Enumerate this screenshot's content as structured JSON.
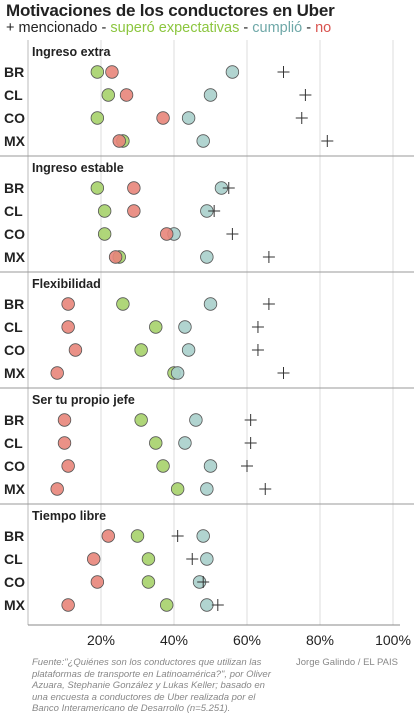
{
  "title": "Motivaciones de los conductores en Uber",
  "legend": {
    "items": [
      {
        "label": "+ mencionado",
        "color": "#222222"
      },
      {
        "label": "superó expectativas",
        "color": "#8cc63f"
      },
      {
        "label": "cumplió",
        "color": "#6fa8a8"
      },
      {
        "label": "no",
        "color": "#d9534f"
      }
    ],
    "separator": " - "
  },
  "source": "Fuente:\"¿Quiénes son los conductores que utilizan las plataformas de transporte en Latinoamérica?\", por Oliver Azuara, Stephanie González y Lukas Keller; basado en una encuesta a conductores de Uber realizada por el Banco Interamericano de Desarrollo (n=5.251).",
  "credit": "Jorge Galindo / EL PAIS",
  "colors": {
    "supero": "#a6d16a",
    "cumplio": "#a9cfcb",
    "no": "#e8857a",
    "stroke": "#555555",
    "grid": "#dddddd"
  },
  "chart_data": {
    "type": "scatter",
    "xlim": [
      0,
      100
    ],
    "x_ticks": [
      "20%",
      "40%",
      "60%",
      "80%",
      "100%"
    ],
    "x_tick_values": [
      20,
      40,
      60,
      80,
      100
    ],
    "series_names": [
      "+ mencionado",
      "superó expectativas",
      "cumplió",
      "no"
    ],
    "panels": [
      {
        "title": "Ingreso extra",
        "rows": [
          {
            "country": "BR",
            "supero": 19,
            "cumplio": 56,
            "no": 23,
            "mencionado": 70
          },
          {
            "country": "CL",
            "supero": 22,
            "cumplio": 50,
            "no": 27,
            "mencionado": 76
          },
          {
            "country": "CO",
            "supero": 19,
            "cumplio": 44,
            "no": 37,
            "mencionado": 75
          },
          {
            "country": "MX",
            "supero": 26,
            "cumplio": 48,
            "no": 25,
            "mencionado": 82
          }
        ]
      },
      {
        "title": "Ingreso estable",
        "rows": [
          {
            "country": "BR",
            "supero": 19,
            "cumplio": 53,
            "no": 29,
            "mencionado": 55
          },
          {
            "country": "CL",
            "supero": 21,
            "cumplio": 49,
            "no": 29,
            "mencionado": 51
          },
          {
            "country": "CO",
            "supero": 21,
            "cumplio": 40,
            "no": 38,
            "mencionado": 56
          },
          {
            "country": "MX",
            "supero": 25,
            "cumplio": 49,
            "no": 24,
            "mencionado": 66
          }
        ]
      },
      {
        "title": "Flexibilidad",
        "rows": [
          {
            "country": "BR",
            "supero": 26,
            "cumplio": 50,
            "no": 11,
            "mencionado": 66
          },
          {
            "country": "CL",
            "supero": 35,
            "cumplio": 43,
            "no": 11,
            "mencionado": 63
          },
          {
            "country": "CO",
            "supero": 31,
            "cumplio": 44,
            "no": 13,
            "mencionado": 63
          },
          {
            "country": "MX",
            "supero": 40,
            "cumplio": 41,
            "no": 8,
            "mencionado": 70
          }
        ]
      },
      {
        "title": "Ser tu propio jefe",
        "rows": [
          {
            "country": "BR",
            "supero": 31,
            "cumplio": 46,
            "no": 10,
            "mencionado": 61
          },
          {
            "country": "CL",
            "supero": 35,
            "cumplio": 43,
            "no": 10,
            "mencionado": 61
          },
          {
            "country": "CO",
            "supero": 37,
            "cumplio": 50,
            "no": 11,
            "mencionado": 60
          },
          {
            "country": "MX",
            "supero": 41,
            "cumplio": 49,
            "no": 8,
            "mencionado": 65
          }
        ]
      },
      {
        "title": "Tiempo libre",
        "rows": [
          {
            "country": "BR",
            "supero": 30,
            "cumplio": 48,
            "no": 22,
            "mencionado": 41
          },
          {
            "country": "CL",
            "supero": 33,
            "cumplio": 49,
            "no": 18,
            "mencionado": 45
          },
          {
            "country": "CO",
            "supero": 33,
            "cumplio": 47,
            "no": 19,
            "mencionado": 48
          },
          {
            "country": "MX",
            "supero": 38,
            "cumplio": 49,
            "no": 11,
            "mencionado": 52
          }
        ]
      }
    ]
  }
}
